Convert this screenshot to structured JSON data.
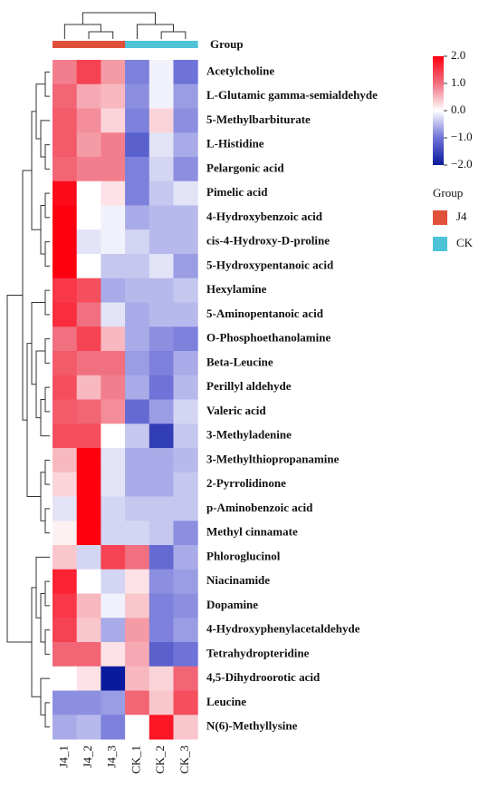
{
  "chart_data": {
    "type": "heatmap",
    "columns": [
      "J4_1",
      "J4_2",
      "J4_3",
      "CK_1",
      "CK_2",
      "CK_3"
    ],
    "column_groups": [
      "J4",
      "J4",
      "J4",
      "CK",
      "CK",
      "CK"
    ],
    "group_label": "Group",
    "rows": [
      "Acetylcholine",
      "L-Glutamic gamma-semialdehyde",
      "5-Methylbarbiturate",
      "L-Histidine",
      "Pelargonic acid",
      "Pimelic acid",
      "4-Hydroxybenzoic acid",
      "cis-4-Hydroxy-D-proline",
      "5-Hydroxypentanoic acid",
      "Hexylamine",
      "5-Aminopentanoic acid",
      "O-Phosphoethanolamine",
      "Beta-Leucine",
      "Perillyl aldehyde",
      "Valeric acid",
      "3-Methyladenine",
      "3-Methylthiopropanamine",
      "2-Pyrrolidinone",
      "p-Aminobenzoic acid",
      "Methyl cinnamate",
      "Phloroglucinol",
      "Niacinamide",
      "Dopamine",
      "4-Hydroxyphenylacetaldehyde",
      "Tetrahydropteridine",
      "4,5-Dihydroorotic acid",
      "Leucine",
      "N(6)-Methyllysine"
    ],
    "values": [
      [
        0.9,
        1.4,
        0.7,
        -0.9,
        -0.1,
        -1.0
      ],
      [
        1.1,
        0.6,
        0.5,
        -0.8,
        -0.1,
        -0.7
      ],
      [
        1.2,
        0.8,
        0.3,
        -0.9,
        0.3,
        -0.8
      ],
      [
        1.2,
        0.7,
        0.9,
        -1.2,
        -0.2,
        -0.6
      ],
      [
        1.1,
        0.9,
        0.9,
        -0.9,
        -0.3,
        -0.8
      ],
      [
        1.9,
        0.0,
        0.2,
        -0.9,
        -0.4,
        -0.2
      ],
      [
        2.0,
        0.0,
        -0.1,
        -0.6,
        -0.5,
        -0.5
      ],
      [
        2.0,
        -0.2,
        -0.1,
        -0.3,
        -0.5,
        -0.5
      ],
      [
        2.0,
        0.0,
        -0.4,
        -0.4,
        -0.2,
        -0.7
      ],
      [
        1.5,
        1.3,
        -0.6,
        -0.5,
        -0.5,
        -0.4
      ],
      [
        1.6,
        1.0,
        -0.2,
        -0.6,
        -0.5,
        -0.5
      ],
      [
        1.0,
        1.4,
        0.5,
        -0.6,
        -0.8,
        -0.9
      ],
      [
        1.2,
        1.0,
        1.0,
        -0.7,
        -0.9,
        -0.6
      ],
      [
        1.3,
        0.5,
        0.9,
        -0.6,
        -1.0,
        -0.5
      ],
      [
        1.2,
        1.1,
        0.8,
        -1.1,
        -0.7,
        -0.3
      ],
      [
        1.3,
        1.3,
        0.0,
        -0.4,
        -1.6,
        -0.4
      ],
      [
        0.5,
        2.0,
        -0.2,
        -0.6,
        -0.6,
        -0.5
      ],
      [
        0.3,
        2.0,
        -0.2,
        -0.6,
        -0.6,
        -0.4
      ],
      [
        -0.2,
        2.0,
        -0.3,
        -0.4,
        -0.4,
        -0.4
      ],
      [
        0.1,
        2.0,
        -0.3,
        -0.3,
        -0.4,
        -0.8
      ],
      [
        0.4,
        -0.3,
        1.4,
        1.0,
        -1.1,
        -0.6
      ],
      [
        1.7,
        0.0,
        -0.3,
        0.2,
        -0.8,
        -0.7
      ],
      [
        1.5,
        0.5,
        -0.1,
        0.4,
        -0.9,
        -0.8
      ],
      [
        1.4,
        0.4,
        -0.6,
        0.7,
        -0.9,
        -0.7
      ],
      [
        1.1,
        1.1,
        0.2,
        0.6,
        -1.2,
        -1.0
      ],
      [
        0.0,
        0.2,
        -2.0,
        0.5,
        0.3,
        1.1
      ],
      [
        -0.8,
        -0.8,
        -0.7,
        1.1,
        0.4,
        1.3
      ],
      [
        -0.6,
        -0.5,
        -0.9,
        0.0,
        1.8,
        0.4
      ]
    ],
    "colorscale": [
      {
        "value": -2,
        "color": "#0a1a9c"
      },
      {
        "value": -1,
        "color": "#6f73d8"
      },
      {
        "value": 0,
        "color": "#ffffff"
      },
      {
        "value": 1,
        "color": "#f07080"
      },
      {
        "value": 2,
        "color": "#ff0010"
      }
    ],
    "clim": [
      -2,
      2
    ],
    "cticks": [
      {
        "value": 2,
        "label": "2.0"
      },
      {
        "value": 1,
        "label": "1.0"
      },
      {
        "value": 0,
        "label": "0.0"
      },
      {
        "value": -1,
        "label": "−1.0"
      },
      {
        "value": -2,
        "label": "−2.0"
      }
    ],
    "legend": {
      "title": "Group",
      "items": [
        {
          "name": "J4",
          "color": "#e0513c"
        },
        {
          "name": "CK",
          "color": "#4ec3d6"
        }
      ]
    }
  }
}
